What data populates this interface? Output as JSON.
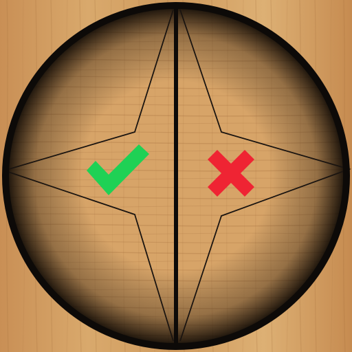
{
  "app": {
    "name": "",
    "theme": {
      "wood_light": "#d9a86a",
      "wood_mid": "#c48d52",
      "wood_dark": "#a8733e",
      "ring_color": "#0d0a08",
      "star_line_color": "#1a1410",
      "accept_color": "#1fd155",
      "reject_color": "#ef2433"
    }
  },
  "dialog": {
    "type": "confirm-choice-wheel",
    "options": [
      {
        "id": "accept",
        "icon": "checkmark-icon",
        "meaning": "yes"
      },
      {
        "id": "reject",
        "icon": "cross-icon",
        "meaning": "no"
      }
    ]
  }
}
